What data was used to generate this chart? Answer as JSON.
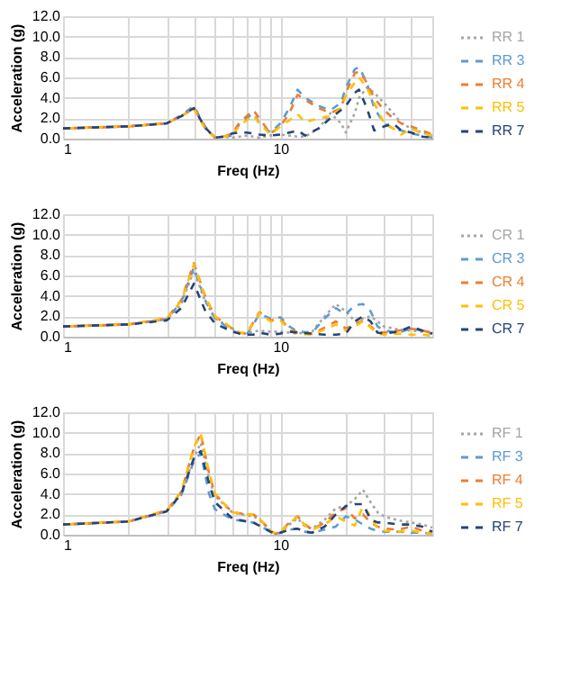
{
  "chart_data": [
    {
      "type": "line",
      "xlabel": "Freq (Hz)",
      "ylabel": "Acceleration (g)",
      "log": "x",
      "grid": true,
      "legend": "right",
      "xlim": [
        1,
        50
      ],
      "xticks": [
        1,
        {
          "value": 2,
          "label": null
        },
        {
          "value": 3,
          "label": null
        },
        {
          "value": 4,
          "label": null
        },
        {
          "value": 5,
          "label": null
        },
        {
          "value": 6,
          "label": null
        },
        {
          "value": 7,
          "label": null
        },
        {
          "value": 8,
          "label": null
        },
        {
          "value": 9,
          "label": null
        },
        10,
        {
          "value": 20,
          "label": null
        },
        {
          "value": 30,
          "label": null
        },
        {
          "value": 40,
          "label": null
        },
        {
          "value": 50,
          "label": null
        }
      ],
      "ylim": [
        0,
        12
      ],
      "yticks": [
        {
          "value": 0,
          "label": "0.0"
        },
        {
          "value": 2,
          "label": "2.0"
        },
        {
          "value": 4,
          "label": "4.0"
        },
        {
          "value": 6,
          "label": "6.0"
        },
        {
          "value": 8,
          "label": "8.0"
        },
        {
          "value": 10,
          "label": "10.0"
        },
        {
          "value": 12,
          "label": "12.0"
        }
      ],
      "x": [
        1,
        2,
        3,
        3.5,
        4,
        4.5,
        5,
        5.5,
        6,
        6.5,
        7,
        7.5,
        8,
        9,
        10,
        11,
        12,
        13,
        15,
        17,
        19,
        20,
        22,
        23,
        25,
        27,
        30,
        33,
        36,
        40,
        45,
        50
      ],
      "series": [
        {
          "name": "RR 1",
          "color": "#a5a5a5",
          "line_style": "dotted",
          "values": [
            1,
            1.2,
            1.5,
            2.2,
            3.0,
            1.0,
            0.1,
            0.2,
            0.1,
            0.2,
            0.3,
            0.2,
            0.1,
            0.3,
            0.4,
            0.3,
            0.2,
            0.2,
            1.0,
            2.5,
            1.5,
            0.6,
            2.5,
            4.0,
            5.0,
            4.5,
            3.5,
            2.5,
            1.5,
            1.0,
            0.6,
            0.3
          ]
        },
        {
          "name": "RR  3",
          "color": "#5b9bd5",
          "line_style": "dashed",
          "values": [
            1,
            1.2,
            1.5,
            2.3,
            3.2,
            1.2,
            0.1,
            0.2,
            0.3,
            1.5,
            2.0,
            2.5,
            1.5,
            0.6,
            1.5,
            3.0,
            4.8,
            4.0,
            3.2,
            2.8,
            3.5,
            5.0,
            6.8,
            7.0,
            5.5,
            3.0,
            1.5,
            1.0,
            0.8,
            0.5,
            0.3,
            0.1
          ]
        },
        {
          "name": "RR 4",
          "color": "#ed7d31",
          "line_style": "dashed",
          "values": [
            1,
            1.2,
            1.5,
            2.2,
            3.0,
            1.1,
            0.1,
            0.2,
            0.5,
            1.6,
            2.2,
            2.8,
            2.0,
            0.5,
            1.2,
            2.5,
            4.3,
            3.8,
            3.0,
            2.5,
            3.0,
            4.5,
            6.4,
            6.6,
            5.5,
            4.0,
            2.8,
            2.0,
            1.5,
            1.2,
            0.8,
            0.4
          ]
        },
        {
          "name": "RR 5",
          "color": "#ffc000",
          "line_style": "dashed",
          "values": [
            1,
            1.2,
            1.5,
            2.2,
            2.9,
            1.0,
            0.1,
            0.2,
            0.3,
            1.3,
            1.8,
            2.3,
            1.5,
            0.4,
            1.2,
            1.8,
            2.4,
            1.6,
            2.0,
            2.2,
            3.0,
            4.2,
            5.5,
            6.0,
            5.0,
            3.5,
            1.5,
            1.0,
            0.4,
            1.0,
            0.5,
            0.3
          ]
        },
        {
          "name": "RR 7",
          "color": "#264478",
          "line_style": "dashed",
          "values": [
            1,
            1.2,
            1.5,
            2.2,
            3.0,
            1.1,
            0.1,
            0.2,
            0.5,
            0.6,
            0.6,
            0.5,
            0.4,
            0.3,
            0.4,
            0.6,
            0.8,
            0.3,
            1.0,
            2.0,
            2.8,
            3.2,
            4.5,
            4.8,
            3.0,
            0.8,
            1.2,
            1.5,
            0.8,
            0.6,
            0.2,
            0.1
          ]
        }
      ]
    },
    {
      "type": "line",
      "xlabel": "Freq (Hz)",
      "ylabel": "Acceleration (g)",
      "log": "x",
      "grid": true,
      "legend": "right",
      "xlim": [
        1,
        50
      ],
      "xticks": [
        1,
        {
          "value": 2,
          "label": null
        },
        {
          "value": 3,
          "label": null
        },
        {
          "value": 4,
          "label": null
        },
        {
          "value": 5,
          "label": null
        },
        {
          "value": 6,
          "label": null
        },
        {
          "value": 7,
          "label": null
        },
        {
          "value": 8,
          "label": null
        },
        {
          "value": 9,
          "label": null
        },
        10,
        {
          "value": 20,
          "label": null
        },
        {
          "value": 30,
          "label": null
        },
        {
          "value": 40,
          "label": null
        },
        {
          "value": 50,
          "label": null
        }
      ],
      "ylim": [
        0,
        12
      ],
      "yticks": [
        {
          "value": 0,
          "label": "0.0"
        },
        {
          "value": 2,
          "label": "2.0"
        },
        {
          "value": 4,
          "label": "4.0"
        },
        {
          "value": 6,
          "label": "6.0"
        },
        {
          "value": 8,
          "label": "8.0"
        },
        {
          "value": 10,
          "label": "10.0"
        },
        {
          "value": 12,
          "label": "12.0"
        }
      ],
      "x": [
        1,
        2,
        3,
        3.5,
        4,
        4.5,
        5,
        6,
        6.5,
        7,
        7.5,
        8,
        9,
        10,
        11,
        12,
        14,
        16,
        18,
        20,
        22,
        24,
        26,
        28,
        30,
        35,
        40,
        45,
        50
      ],
      "series": [
        {
          "name": "CR 1",
          "color": "#a5a5a5",
          "line_style": "dotted",
          "values": [
            1,
            1.2,
            1.7,
            3.2,
            6.5,
            3.5,
            1.8,
            0.8,
            0.4,
            0.3,
            0.5,
            0.6,
            0.5,
            0.5,
            0.4,
            0.3,
            0.5,
            2.0,
            3.2,
            2.5,
            1.5,
            1.8,
            2.0,
            1.5,
            1.0,
            0.7,
            0.6,
            0.5,
            0.4
          ]
        },
        {
          "name": "CR 3",
          "color": "#5b9bd5",
          "line_style": "dashed",
          "values": [
            1,
            1.2,
            1.7,
            3.4,
            6.8,
            3.6,
            1.8,
            0.6,
            0.3,
            0.2,
            1.2,
            2.2,
            1.8,
            1.9,
            1.0,
            0.5,
            0.4,
            1.8,
            2.8,
            2.2,
            3.1,
            3.2,
            2.5,
            1.0,
            0.6,
            0.4,
            0.8,
            0.6,
            0.3
          ]
        },
        {
          "name": "CR 4",
          "color": "#ed7d31",
          "line_style": "dashed",
          "values": [
            1,
            1.2,
            1.8,
            3.6,
            7.2,
            4.0,
            2.0,
            0.8,
            0.4,
            0.3,
            1.4,
            2.4,
            1.6,
            1.7,
            0.8,
            0.4,
            0.3,
            0.9,
            1.5,
            0.8,
            1.2,
            1.6,
            1.0,
            0.5,
            0.4,
            0.6,
            0.8,
            0.6,
            0.4
          ]
        },
        {
          "name": "CR 5",
          "color": "#ffc000",
          "line_style": "dashed",
          "values": [
            1,
            1.2,
            1.8,
            3.5,
            7.1,
            3.9,
            2.0,
            0.8,
            0.4,
            0.3,
            1.3,
            2.3,
            1.5,
            1.6,
            0.7,
            0.3,
            0.2,
            0.7,
            1.2,
            0.6,
            1.0,
            1.5,
            0.9,
            0.3,
            0.2,
            0.3,
            0.2,
            0.2,
            0.1
          ]
        },
        {
          "name": "CR 7",
          "color": "#264478",
          "line_style": "dashed",
          "values": [
            1,
            1.2,
            1.6,
            2.8,
            5.2,
            2.6,
            1.3,
            0.5,
            0.3,
            0.2,
            0.2,
            0.4,
            0.2,
            0.3,
            0.5,
            0.4,
            0.3,
            0.2,
            0.2,
            0.3,
            1.5,
            2.0,
            1.5,
            0.4,
            0.3,
            0.5,
            1.0,
            0.6,
            0.3
          ]
        }
      ]
    },
    {
      "type": "line",
      "xlabel": "Freq (Hz)",
      "ylabel": "Acceleration (g)",
      "log": "x",
      "grid": true,
      "legend": "right",
      "xlim": [
        1,
        50
      ],
      "xticks": [
        1,
        {
          "value": 2,
          "label": null
        },
        {
          "value": 3,
          "label": null
        },
        {
          "value": 4,
          "label": null
        },
        {
          "value": 5,
          "label": null
        },
        {
          "value": 6,
          "label": null
        },
        {
          "value": 7,
          "label": null
        },
        {
          "value": 8,
          "label": null
        },
        {
          "value": 9,
          "label": null
        },
        10,
        {
          "value": 20,
          "label": null
        },
        {
          "value": 30,
          "label": null
        },
        {
          "value": 40,
          "label": null
        },
        {
          "value": 50,
          "label": null
        }
      ],
      "ylim": [
        0,
        12
      ],
      "yticks": [
        {
          "value": 0,
          "label": "0.0"
        },
        {
          "value": 2,
          "label": "2.0"
        },
        {
          "value": 4,
          "label": "4.0"
        },
        {
          "value": 6,
          "label": "6.0"
        },
        {
          "value": 8,
          "label": "8.0"
        },
        {
          "value": 10,
          "label": "10.0"
        },
        {
          "value": 12,
          "label": "12.0"
        }
      ],
      "x": [
        1,
        2,
        3,
        3.5,
        4,
        4.3,
        4.7,
        5,
        6,
        7,
        7.5,
        8,
        9,
        9.5,
        10,
        11,
        12,
        13,
        14,
        16,
        18,
        20,
        22,
        24,
        26,
        28,
        30,
        35,
        40,
        45,
        50
      ],
      "series": [
        {
          "name": "RF 1",
          "color": "#a5a5a5",
          "line_style": "dotted",
          "values": [
            1,
            1.3,
            2.3,
            4.0,
            7.5,
            9.0,
            5.5,
            3.8,
            2.2,
            1.9,
            1.8,
            1.5,
            0.4,
            0.1,
            0.2,
            1.0,
            1.6,
            0.8,
            0.6,
            1.5,
            2.6,
            2.8,
            3.5,
            4.4,
            3.2,
            2.2,
            1.8,
            1.4,
            1.2,
            1.0,
            0.7
          ]
        },
        {
          "name": "RF 3",
          "color": "#5b9bd5",
          "line_style": "dashed",
          "values": [
            1,
            1.3,
            2.3,
            3.9,
            7.2,
            8.0,
            4.0,
            2.5,
            1.5,
            1.3,
            1.2,
            0.9,
            0.3,
            0.1,
            0.2,
            0.5,
            0.6,
            0.3,
            0.2,
            0.5,
            0.8,
            1.8,
            1.5,
            1.0,
            0.6,
            0.4,
            0.3,
            0.3,
            0.2,
            0.2,
            0.1
          ]
        },
        {
          "name": "RF 4",
          "color": "#ed7d31",
          "line_style": "dashed",
          "values": [
            1,
            1.3,
            2.4,
            4.2,
            8.5,
            9.9,
            6.0,
            4.0,
            2.2,
            2.0,
            2.0,
            1.6,
            0.4,
            0.1,
            0.3,
            1.2,
            1.8,
            1.0,
            0.5,
            1.2,
            2.2,
            2.6,
            1.6,
            2.0,
            1.2,
            0.8,
            0.6,
            0.5,
            0.8,
            0.4,
            0.2
          ]
        },
        {
          "name": "RF 5",
          "color": "#ffc000",
          "line_style": "dashed",
          "values": [
            1,
            1.3,
            2.4,
            4.2,
            8.6,
            9.9,
            6.1,
            4.0,
            2.2,
            2.0,
            2.0,
            1.6,
            0.4,
            0.1,
            0.3,
            1.1,
            1.8,
            0.9,
            0.5,
            1.0,
            1.8,
            1.3,
            0.9,
            2.8,
            1.8,
            0.6,
            0.4,
            0.3,
            0.4,
            0.2,
            0.1
          ]
        },
        {
          "name": "RF 7",
          "color": "#264478",
          "line_style": "dashed",
          "values": [
            1,
            1.3,
            2.3,
            4.0,
            7.5,
            8.2,
            5.0,
            3.2,
            1.6,
            1.3,
            1.2,
            0.9,
            0.3,
            0.1,
            0.2,
            0.5,
            0.6,
            0.3,
            0.2,
            0.8,
            2.0,
            2.8,
            3.0,
            3.0,
            1.5,
            1.2,
            1.2,
            1.0,
            1.0,
            0.8,
            0.3
          ]
        }
      ]
    }
  ]
}
